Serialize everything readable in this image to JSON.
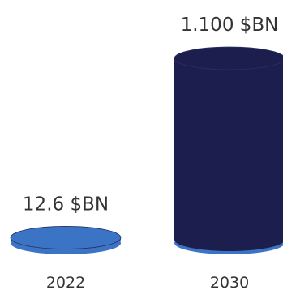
{
  "chart_data": {
    "type": "bar",
    "style": "cylinder",
    "categories": [
      "2022",
      "2030"
    ],
    "values": [
      12.6,
      1100
    ],
    "value_labels": [
      "12.6 $BN",
      "1.100 $BN"
    ],
    "colors": [
      "#3b74c4",
      "#1c1f4e"
    ],
    "base_color": "#3b74c4",
    "ylim": [
      0,
      1100
    ],
    "grid": false,
    "legend": "none"
  }
}
